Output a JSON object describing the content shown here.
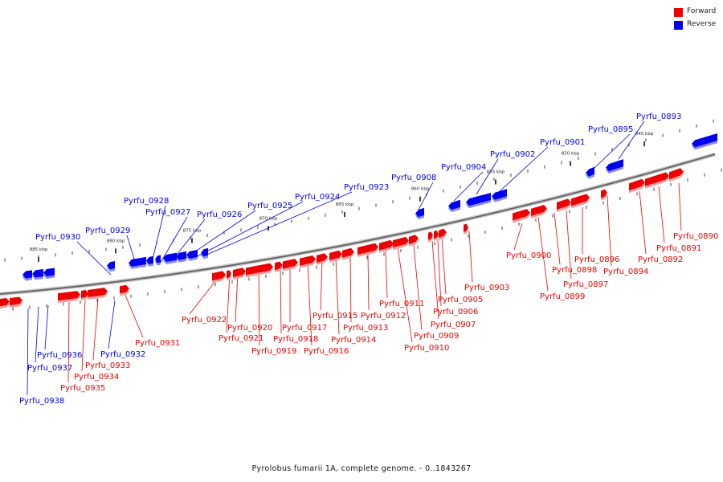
{
  "caption": "Pyrolobus fumarii 1A, complete genome. - 0..1843267",
  "legend": {
    "forward": {
      "label": "Forward",
      "color": "#ee0000"
    },
    "reverse": {
      "label": "Reverse",
      "color": "#0000ee"
    }
  },
  "scale_ticks": [
    "845 kbp",
    "850 kbp",
    "855 kbp",
    "860 kbp",
    "865 kbp",
    "870 kbp",
    "875 kbp",
    "880 kbp",
    "885 kbp"
  ],
  "genes_reverse": [
    "Pyrfu_0893",
    "Pyrfu_0895",
    "Pyrfu_0901",
    "Pyrfu_0902",
    "Pyrfu_0904",
    "Pyrfu_0908",
    "Pyrfu_0923",
    "Pyrfu_0924",
    "Pyrfu_0925",
    "Pyrfu_0926",
    "Pyrfu_0927",
    "Pyrfu_0928",
    "Pyrfu_0929",
    "Pyrfu_0930",
    "Pyrfu_0932",
    "Pyrfu_0936",
    "Pyrfu_0937",
    "Pyrfu_0938"
  ],
  "genes_forward": [
    "Pyrfu_0890",
    "Pyrfu_0891",
    "Pyrfu_0892",
    "Pyrfu_0894",
    "Pyrfu_0896",
    "Pyrfu_0897",
    "Pyrfu_0898",
    "Pyrfu_0899",
    "Pyrfu_0900",
    "Pyrfu_0903",
    "Pyrfu_0905",
    "Pyrfu_0906",
    "Pyrfu_0907",
    "Pyrfu_0909",
    "Pyrfu_0910",
    "Pyrfu_0911",
    "Pyrfu_0912",
    "Pyrfu_0913",
    "Pyrfu_0914",
    "Pyrfu_0915",
    "Pyrfu_0916",
    "Pyrfu_0917",
    "Pyrfu_0918",
    "Pyrfu_0919",
    "Pyrfu_0920",
    "Pyrfu_0921",
    "Pyrfu_0922",
    "Pyrfu_0931",
    "Pyrfu_0933",
    "Pyrfu_0934",
    "Pyrfu_0935"
  ]
}
